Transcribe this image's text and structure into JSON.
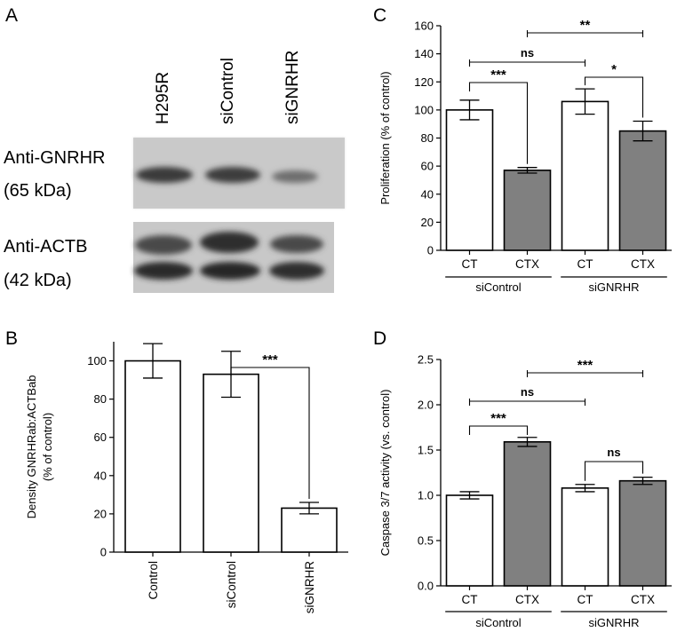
{
  "panels": {
    "a": "A",
    "b": "B",
    "c": "C",
    "d": "D"
  },
  "western_blot": {
    "lanes": [
      "H295R",
      "siControl",
      "siGNRHR"
    ],
    "rows": [
      {
        "label": "Anti-GNRHR",
        "size": "(65 kDa)"
      },
      {
        "label": "Anti-ACTB",
        "size": "(42 kDa)"
      }
    ]
  },
  "chart_data": [
    {
      "panel": "B",
      "type": "bar",
      "categories": [
        "Control",
        "siControl",
        "siGNRHR"
      ],
      "values": [
        100,
        93,
        23
      ],
      "errors": [
        9,
        12,
        3
      ],
      "fills": [
        "#ffffff",
        "#ffffff",
        "#ffffff"
      ],
      "ylabel_lines": [
        "Density GNRHRab:ACTBab",
        "(% of control)"
      ],
      "ylim": [
        0,
        110
      ],
      "yticks": [
        "0",
        "20",
        "40",
        "60",
        "80",
        "100"
      ],
      "comparisons": [
        {
          "from": 1,
          "to": 2,
          "label": "***"
        }
      ]
    },
    {
      "panel": "C",
      "type": "bar",
      "categories": [
        "CT",
        "CTX",
        "CT",
        "CTX"
      ],
      "groups": [
        {
          "label": "siControl",
          "members": [
            0,
            1
          ]
        },
        {
          "label": "siGNRHR",
          "members": [
            2,
            3
          ]
        }
      ],
      "values": [
        100,
        57,
        106,
        85
      ],
      "errors": [
        7,
        2,
        9,
        7
      ],
      "fills": [
        "#ffffff",
        "#808080",
        "#ffffff",
        "#808080"
      ],
      "ylabel": "Proliferation (% of control)",
      "ylim": [
        0,
        160
      ],
      "yticks": [
        "0",
        "20",
        "40",
        "60",
        "80",
        "100",
        "120",
        "140",
        "160"
      ],
      "comparisons": [
        {
          "from": 0,
          "to": 1,
          "label": "***"
        },
        {
          "from": 0,
          "to": 2,
          "label": "ns"
        },
        {
          "from": 1,
          "to": 3,
          "label": "**"
        },
        {
          "from": 2,
          "to": 3,
          "label": "*"
        }
      ]
    },
    {
      "panel": "D",
      "type": "bar",
      "categories": [
        "CT",
        "CTX",
        "CT",
        "CTX"
      ],
      "groups": [
        {
          "label": "siControl",
          "members": [
            0,
            1
          ]
        },
        {
          "label": "siGNRHR",
          "members": [
            2,
            3
          ]
        }
      ],
      "values": [
        1.0,
        1.59,
        1.08,
        1.16
      ],
      "errors": [
        0.04,
        0.05,
        0.04,
        0.04
      ],
      "fills": [
        "#ffffff",
        "#808080",
        "#ffffff",
        "#808080"
      ],
      "ylabel": "Caspase 3/7 activity (vs. control)",
      "ylim": [
        0,
        2.5
      ],
      "yticks": [
        "0.0",
        "0.5",
        "1.0",
        "1.5",
        "2.0",
        "2.5"
      ],
      "comparisons": [
        {
          "from": 0,
          "to": 1,
          "label": "***"
        },
        {
          "from": 0,
          "to": 2,
          "label": "ns"
        },
        {
          "from": 1,
          "to": 3,
          "label": "***"
        },
        {
          "from": 2,
          "to": 3,
          "label": "ns"
        }
      ]
    }
  ]
}
